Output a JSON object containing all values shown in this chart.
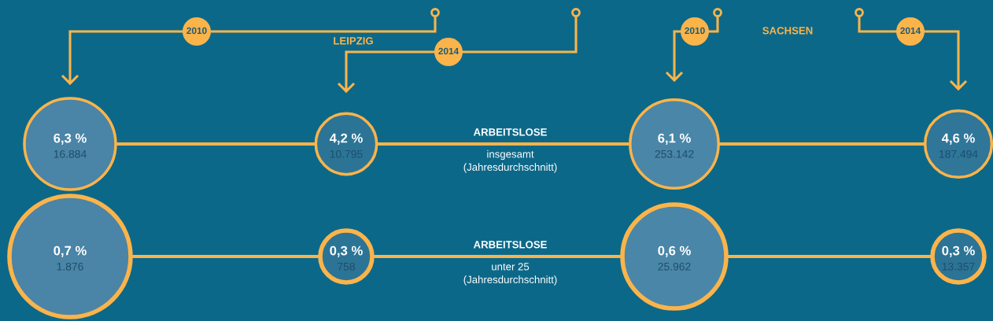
{
  "chart_data": {
    "type": "other",
    "categories": [
      "2010",
      "2014",
      "2010",
      "2014"
    ],
    "annotations": [
      "LEIPZIG",
      "SACHSEN"
    ],
    "series": [
      {
        "type": "bubble",
        "name": "ARBEITSLOSE\ninsgesamt\n(Jahresdurchschnitt)",
        "colors": [
          "#4a84a6",
          "#2c7496",
          "#4a86a8",
          "#2f7699"
        ],
        "values": [
          6.3,
          4.2,
          6.1,
          4.6
        ],
        "value_labels": [
          "6,3 %",
          "4,2 %",
          "6,1 %",
          "4,6 %"
        ]
      },
      {
        "type": "other",
        "color": "#1d4f6e",
        "values": [
          16884,
          10795,
          253142,
          187494
        ],
        "value_labels": [
          "16.884",
          "10.795",
          "253.142",
          "187.494"
        ]
      },
      {
        "type": "bubble",
        "name": "ARBEITSLOSE\nunter 25\n(Jahresdurchschnitt)",
        "colors": [
          "#4a84a6",
          "#2c7496",
          "#4a86a8",
          "#2c7496"
        ],
        "values": [
          0.7,
          0.3,
          0.6,
          0.3
        ],
        "value_labels": [
          "0,7 %",
          "0,3 %",
          "0,6 %",
          "0,3 %"
        ]
      },
      {
        "type": "other",
        "color": "#1d4f6e",
        "values": [
          1876,
          758,
          25962,
          13357
        ],
        "value_labels": [
          "1.876",
          "758",
          "25.962",
          "13.357"
        ]
      }
    ]
  }
}
